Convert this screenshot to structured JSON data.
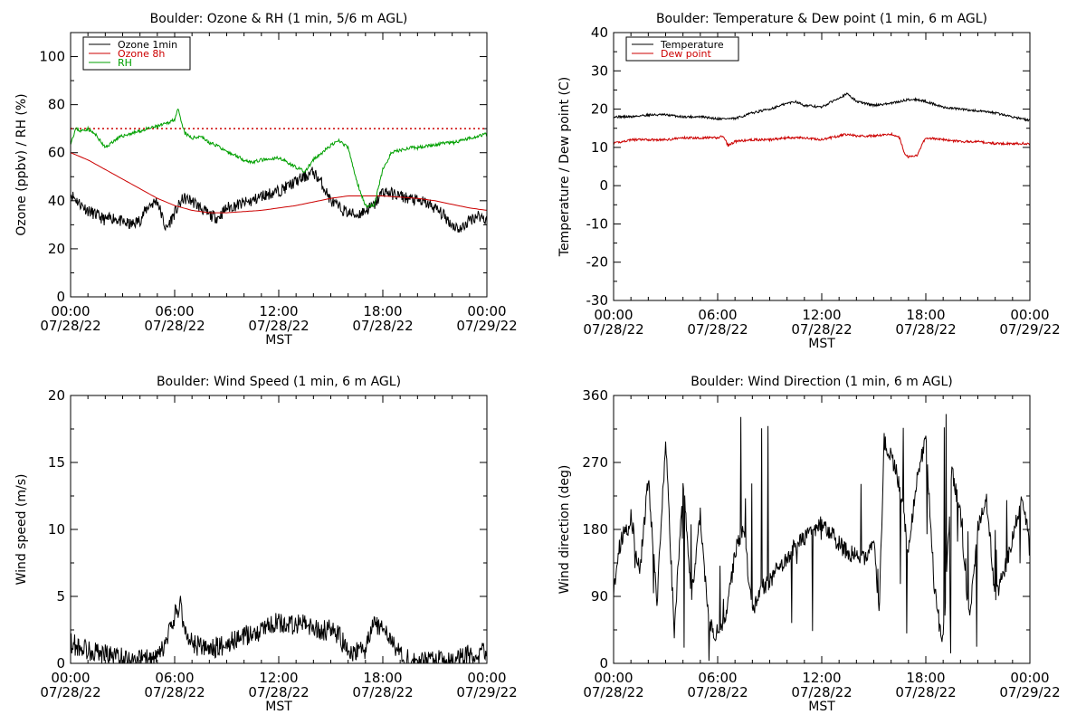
{
  "chart_data": [
    {
      "id": "ozone",
      "type": "line",
      "title": "Boulder: Ozone & RH (1 min, 5/6 m AGL)",
      "xlabel": "MST",
      "ylabel": "Ozone (ppbv) / RH (%)",
      "xlim": [
        0,
        24
      ],
      "ylim": [
        0,
        110
      ],
      "yticks": [
        0,
        20,
        40,
        60,
        80,
        100
      ],
      "xticks": [
        {
          "t": "00:00",
          "d": "07/28/22"
        },
        {
          "t": "06:00",
          "d": "07/28/22"
        },
        {
          "t": "12:00",
          "d": "07/28/22"
        },
        {
          "t": "18:00",
          "d": "07/28/22"
        },
        {
          "t": "00:00",
          "d": "07/29/22"
        }
      ],
      "reference_line": {
        "y": 70,
        "color": "#cc0000",
        "style": "dotted"
      },
      "legend": {
        "position": "top-left",
        "entries": [
          "Ozone 1min",
          "Ozone 8h",
          "RH"
        ]
      },
      "series": [
        {
          "name": "Ozone 1min",
          "color": "#000000",
          "noise": 2.5,
          "seed": 11,
          "x": [
            0,
            0.5,
            1,
            1.5,
            2,
            2.5,
            3,
            3.5,
            4,
            4.5,
            5,
            5.5,
            6,
            6.5,
            7,
            7.5,
            8,
            8.5,
            9,
            9.5,
            10,
            10.5,
            11,
            11.5,
            12,
            12.5,
            13,
            13.5,
            14,
            14.5,
            15,
            15.5,
            16,
            16.5,
            17,
            17.5,
            18,
            18.5,
            19,
            19.5,
            20,
            20.5,
            21,
            21.5,
            22,
            22.5,
            23,
            23.5,
            24
          ],
          "y": [
            43,
            39,
            36,
            34,
            32,
            33,
            31,
            30,
            32,
            38,
            40,
            28,
            35,
            41,
            40,
            37,
            34,
            33,
            37,
            38,
            39,
            40,
            42,
            43,
            44,
            46,
            48,
            50,
            52,
            47,
            40,
            37,
            35,
            34,
            36,
            38,
            44,
            43,
            42,
            41,
            40,
            39,
            37,
            34,
            30,
            28,
            32,
            34,
            32
          ]
        },
        {
          "name": "Ozone 8h",
          "color": "#cc0000",
          "noise": 0,
          "seed": 0,
          "x": [
            0,
            1,
            2,
            3,
            4,
            5,
            6,
            7,
            8,
            9,
            10,
            11,
            12,
            13,
            14,
            15,
            16,
            17,
            18,
            19,
            20,
            21,
            22,
            23,
            24
          ],
          "y": [
            60,
            57,
            53,
            49,
            45,
            41,
            38,
            36,
            35,
            35,
            35.5,
            36,
            37,
            38,
            39.5,
            41,
            42,
            42,
            42,
            41.5,
            41,
            40,
            38.5,
            37,
            36
          ]
        },
        {
          "name": "RH",
          "color": "#00a000",
          "noise": 0.7,
          "seed": 23,
          "x": [
            0,
            0.3,
            0.6,
            1,
            1.5,
            2,
            2.5,
            3,
            3.5,
            4,
            4.5,
            5,
            5.5,
            6,
            6.2,
            6.4,
            6.6,
            7,
            7.5,
            8,
            8.5,
            9,
            9.5,
            10,
            10.5,
            11,
            11.5,
            12,
            12.5,
            13,
            13.5,
            14,
            14.5,
            15,
            15.5,
            16,
            16.5,
            17,
            17.5,
            18,
            18.5,
            19,
            19.5,
            20,
            20.5,
            21,
            21.5,
            22,
            22.5,
            23,
            23.5,
            24
          ],
          "y": [
            64,
            70,
            69,
            70,
            67,
            62,
            65,
            67,
            68,
            69,
            70,
            71,
            72,
            74,
            78,
            72,
            68,
            66,
            67,
            64,
            63,
            60,
            59,
            57,
            56,
            57,
            57,
            58,
            56,
            54,
            52,
            57,
            60,
            63,
            65,
            62,
            48,
            38,
            38,
            53,
            60,
            61,
            62,
            62,
            63,
            63,
            64,
            64,
            65,
            66,
            67,
            68
          ]
        }
      ]
    },
    {
      "id": "temp",
      "type": "line",
      "title": "Boulder: Temperature & Dew point (1 min, 6 m AGL)",
      "xlabel": "MST",
      "ylabel": "Temperature / Dew point (C)",
      "xlim": [
        0,
        24
      ],
      "ylim": [
        -30,
        40
      ],
      "yticks": [
        -30,
        -20,
        -10,
        0,
        10,
        20,
        30,
        40
      ],
      "xticks": [
        {
          "t": "00:00",
          "d": "07/28/22"
        },
        {
          "t": "06:00",
          "d": "07/28/22"
        },
        {
          "t": "12:00",
          "d": "07/28/22"
        },
        {
          "t": "18:00",
          "d": "07/28/22"
        },
        {
          "t": "00:00",
          "d": "07/29/22"
        }
      ],
      "legend": {
        "position": "top-left",
        "entries": [
          "Temperature",
          "Dew point"
        ]
      },
      "series": [
        {
          "name": "Temperature",
          "color": "#000000",
          "noise": 0.3,
          "seed": 31,
          "x": [
            0,
            1,
            2,
            3,
            4,
            5,
            6,
            7,
            8,
            9,
            10,
            10.5,
            11,
            12,
            13,
            13.5,
            14,
            15,
            16,
            17,
            17.5,
            18,
            19,
            20,
            21,
            22,
            23,
            24
          ],
          "y": [
            18,
            18,
            18.5,
            18.5,
            18,
            18,
            17.5,
            17.5,
            19,
            20,
            21.5,
            22,
            21,
            20.5,
            23,
            24,
            22,
            21,
            21.5,
            22.5,
            22.5,
            22,
            20.5,
            20,
            19.5,
            19,
            18,
            17
          ]
        },
        {
          "name": "Dew point",
          "color": "#cc0000",
          "noise": 0.3,
          "seed": 41,
          "x": [
            0,
            0.5,
            1,
            2,
            3,
            4,
            5,
            6,
            6.3,
            6.6,
            7,
            8,
            9,
            10,
            11,
            12,
            13,
            13.5,
            14,
            15,
            16,
            16.5,
            16.8,
            17,
            17.5,
            17.8,
            18,
            19,
            20,
            21,
            22,
            23,
            24
          ],
          "y": [
            11,
            11.5,
            12,
            12,
            12,
            12.5,
            12.5,
            12.5,
            13,
            10.5,
            11.5,
            12,
            12,
            12.5,
            12.5,
            12,
            13,
            13.5,
            13,
            13,
            13.5,
            12.5,
            8,
            7.5,
            8,
            11,
            12.5,
            12,
            11.5,
            11.5,
            11,
            11,
            11
          ]
        }
      ]
    },
    {
      "id": "wspd",
      "type": "line",
      "title": "Boulder: Wind Speed (1 min, 6 m AGL)",
      "xlabel": "MST",
      "ylabel": "Wind speed (m/s)",
      "xlim": [
        0,
        24
      ],
      "ylim": [
        0,
        20
      ],
      "yticks": [
        0,
        5,
        10,
        15,
        20
      ],
      "xticks": [
        {
          "t": "00:00",
          "d": "07/28/22"
        },
        {
          "t": "06:00",
          "d": "07/28/22"
        },
        {
          "t": "12:00",
          "d": "07/28/22"
        },
        {
          "t": "18:00",
          "d": "07/28/22"
        },
        {
          "t": "00:00",
          "d": "07/29/22"
        }
      ],
      "series": [
        {
          "name": "",
          "color": "#000000",
          "noise": 0.8,
          "seed": 53,
          "x": [
            0,
            1,
            2,
            3,
            4,
            5,
            5.5,
            6,
            6.3,
            6.6,
            7,
            8,
            9,
            10,
            11,
            11.5,
            12,
            13,
            13.5,
            14,
            15,
            15.5,
            16,
            17,
            17.5,
            18,
            18.5,
            19,
            20,
            21,
            22,
            23,
            24
          ],
          "y": [
            1.5,
            1,
            0.7,
            0.4,
            0.3,
            0.3,
            1.5,
            3.5,
            4.5,
            2.5,
            1.5,
            1,
            1.5,
            2,
            2.5,
            3,
            3,
            2.8,
            3,
            2.5,
            2.5,
            2,
            0.8,
            1,
            3,
            2.5,
            2,
            0.5,
            0.3,
            0.2,
            0.3,
            0.8,
            0.7
          ]
        }
      ]
    },
    {
      "id": "wdir",
      "type": "line",
      "title": "Boulder: Wind Direction (1 min, 6 m AGL)",
      "xlabel": "MST",
      "ylabel": "Wind direction (deg)",
      "xlim": [
        0,
        24
      ],
      "ylim": [
        0,
        360
      ],
      "yticks": [
        0,
        90,
        180,
        270,
        360
      ],
      "xticks": [
        {
          "t": "00:00",
          "d": "07/28/22"
        },
        {
          "t": "06:00",
          "d": "07/28/22"
        },
        {
          "t": "12:00",
          "d": "07/28/22"
        },
        {
          "t": "18:00",
          "d": "07/28/22"
        },
        {
          "t": "00:00",
          "d": "07/29/22"
        }
      ],
      "series": [
        {
          "name": "",
          "color": "#000000",
          "noise": 12,
          "seed": 67,
          "x": [
            0,
            0.5,
            0.8,
            1,
            1.5,
            2,
            2.5,
            3,
            3.5,
            4,
            4.5,
            5,
            5.5,
            6,
            6.5,
            7,
            7.5,
            8,
            8.5,
            9,
            9.5,
            10,
            10.5,
            11,
            11.5,
            12,
            12.5,
            13,
            13.5,
            14,
            14.5,
            15,
            15.3,
            15.6,
            16,
            16.5,
            17,
            17.5,
            18,
            18.5,
            19,
            19.5,
            20,
            20.5,
            21,
            21.5,
            22,
            22.5,
            23,
            23.5,
            24
          ],
          "y": [
            100,
            170,
            180,
            200,
            120,
            250,
            80,
            300,
            40,
            250,
            90,
            200,
            50,
            40,
            60,
            150,
            180,
            70,
            100,
            110,
            130,
            140,
            160,
            170,
            180,
            190,
            175,
            160,
            150,
            145,
            140,
            170,
            60,
            300,
            280,
            240,
            150,
            250,
            300,
            100,
            30,
            260,
            200,
            60,
            180,
            220,
            90,
            120,
            170,
            220,
            170
          ]
        }
      ]
    }
  ]
}
